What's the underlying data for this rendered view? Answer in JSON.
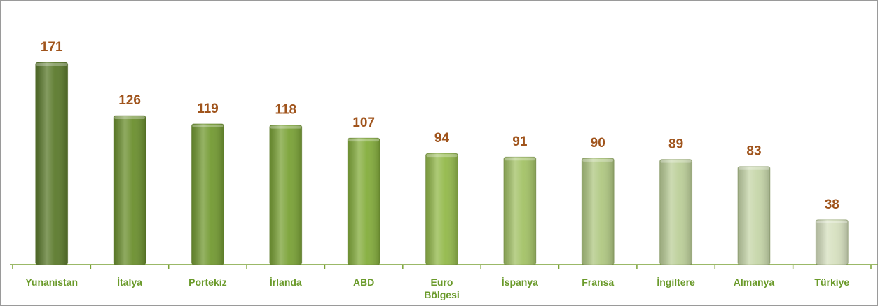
{
  "chart_data": {
    "type": "bar",
    "categories": [
      "Yunanistan",
      "İtalya",
      "Portekiz",
      "İrlanda",
      "ABD",
      "Euro Bölgesi",
      "İspanya",
      "Fransa",
      "İngiltere",
      "Almanya",
      "Türkiye"
    ],
    "values": [
      171,
      126,
      119,
      118,
      107,
      94,
      91,
      90,
      89,
      83,
      38
    ],
    "colors": [
      "#5b7a2c",
      "#6b8f2e",
      "#739a32",
      "#7aa236",
      "#84ad3c",
      "#93b94a",
      "#a3c266",
      "#b0c882",
      "#bccf99",
      "#c6d6a9",
      "#d6e0bf"
    ],
    "label_color": "#a0541c",
    "category_color": "#6a9a2a",
    "axis_color": "#7aa236",
    "ylim": [
      0,
      200
    ]
  }
}
